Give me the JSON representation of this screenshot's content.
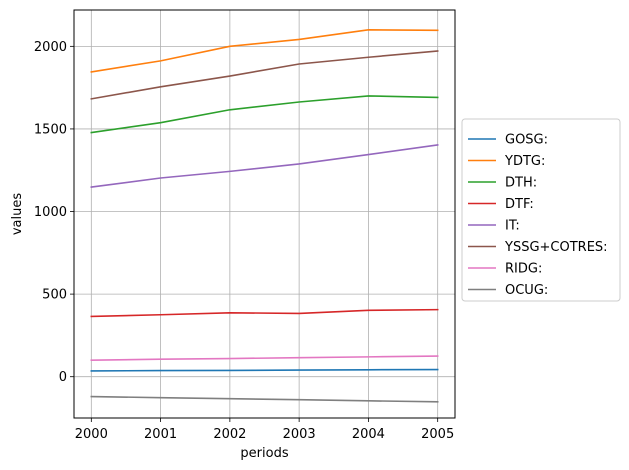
{
  "chart_data": {
    "type": "line",
    "xlabel": "periods",
    "ylabel": "values",
    "x": [
      2000,
      2001,
      2002,
      2003,
      2004,
      2005
    ],
    "xlim": [
      1999.75,
      2005.25
    ],
    "ylim": [
      -250,
      2220
    ],
    "yticks": [
      0,
      500,
      1000,
      1500,
      2000
    ],
    "grid": true,
    "legend_position": "right-outside",
    "series": [
      {
        "name": "GOSG:",
        "color": "#1f77b4",
        "values": [
          35,
          37,
          38,
          40,
          42,
          43
        ]
      },
      {
        "name": "YDTG:",
        "color": "#ff7f0e",
        "values": [
          1845,
          1912,
          2000,
          2042,
          2100,
          2097
        ]
      },
      {
        "name": "DTH:",
        "color": "#2ca02c",
        "values": [
          1478,
          1538,
          1616,
          1663,
          1700,
          1691
        ]
      },
      {
        "name": "DTF:",
        "color": "#d62728",
        "values": [
          365,
          375,
          387,
          383,
          402,
          406
        ]
      },
      {
        "name": "IT:",
        "color": "#9467bd",
        "values": [
          1148,
          1203,
          1243,
          1288,
          1345,
          1403
        ]
      },
      {
        "name": "YSSG+COTRES:",
        "color": "#8c564b",
        "values": [
          1682,
          1755,
          1820,
          1893,
          1934,
          1972
        ]
      },
      {
        "name": "RIDG:",
        "color": "#e377c2",
        "values": [
          100,
          106,
          110,
          115,
          120,
          125
        ]
      },
      {
        "name": "OCUG:",
        "color": "#7f7f7f",
        "values": [
          -120,
          -127,
          -133,
          -139,
          -146,
          -152
        ]
      }
    ]
  }
}
